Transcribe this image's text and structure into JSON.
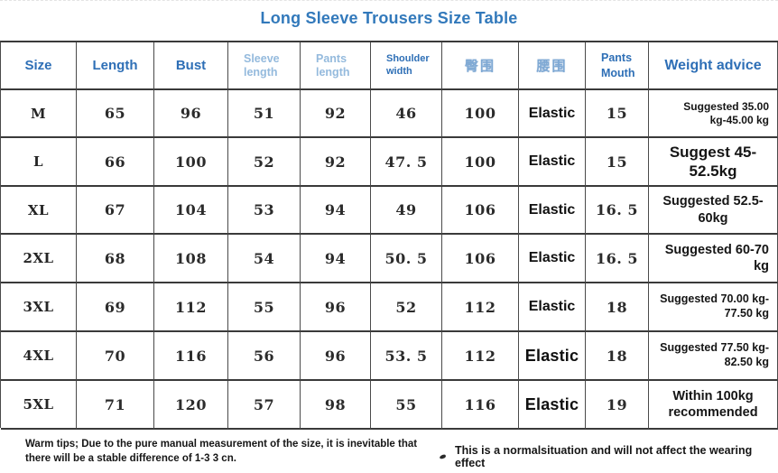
{
  "title": "Long Sleeve Trousers Size Table",
  "accent_colors": {
    "header_blue": "#2e6fb6",
    "light_blue": "#94badd",
    "title_blue": "#3279bb"
  },
  "table": {
    "columns": [
      {
        "label": "Size"
      },
      {
        "label": "Length"
      },
      {
        "label": "Bust"
      },
      {
        "label": "Sleeve length"
      },
      {
        "label": "Pants length"
      },
      {
        "label": "Shoulder width"
      },
      {
        "label": "臀围"
      },
      {
        "label": "腰围"
      },
      {
        "label": "Pants Mouth"
      },
      {
        "label": "Weight advice"
      }
    ],
    "rows": [
      [
        "M",
        "65",
        "96",
        "51",
        "92",
        "46",
        "100",
        "Elastic",
        "15",
        "Suggested 35.00\nkg-45.00 kg"
      ],
      [
        "L",
        "66",
        "100",
        "52",
        "92",
        "47. 5",
        "100",
        "Elastic",
        "15",
        "Suggest 45-52.5kg"
      ],
      [
        "XL",
        "67",
        "104",
        "53",
        "94",
        "49",
        "106",
        "Elastic",
        "16. 5",
        "Suggested 52.5-60kg"
      ],
      [
        "2XL",
        "68",
        "108",
        "54",
        "94",
        "50. 5",
        "106",
        "Elastic",
        "16. 5",
        "Suggested 60-70\nkg"
      ],
      [
        "3XL",
        "69",
        "112",
        "55",
        "96",
        "52",
        "112",
        "Elastic",
        "18",
        "Suggested 70.00 kg-\n77.50 kg"
      ],
      [
        "4XL",
        "70",
        "116",
        "56",
        "96",
        "53. 5",
        "112",
        "Elastic",
        "18",
        "Suggested 77.50 kg-\n82.50 kg"
      ],
      [
        "5XL",
        "71",
        "120",
        "57",
        "98",
        "55",
        "116",
        "Elastic",
        "19",
        "Within 100kg\nrecommended"
      ]
    ]
  },
  "footer": {
    "left": "Warm tips; Due to the pure manual measurement of the size, it is inevitable that there will be a stable difference of 1-3 3 cn.",
    "right": "This is a normalsituation and will not affect the wearing effect"
  }
}
